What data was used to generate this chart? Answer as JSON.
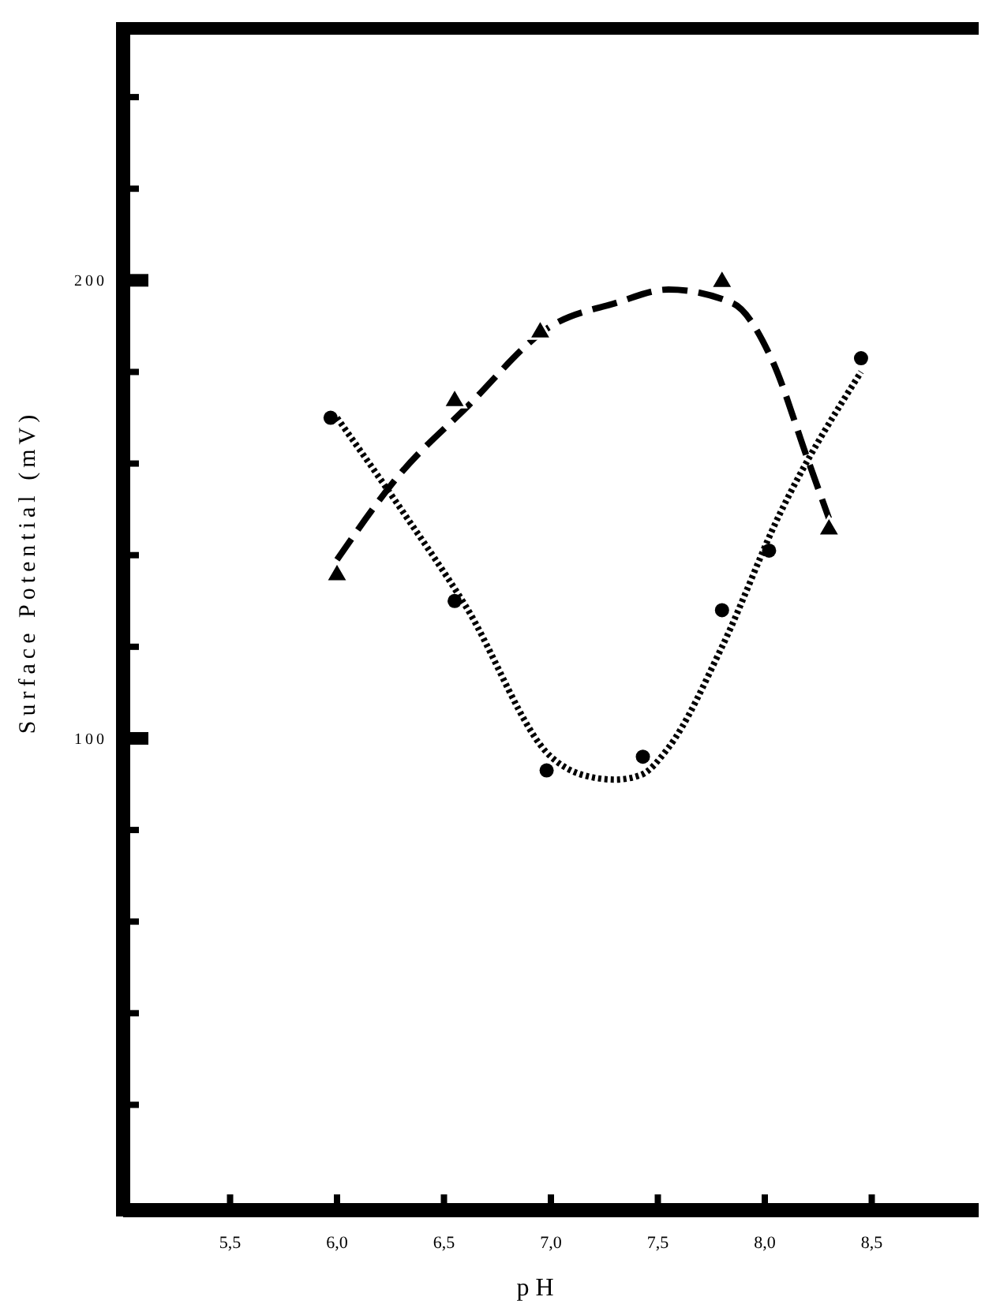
{
  "chart_data": {
    "type": "scatter",
    "xlabel": "p H",
    "ylabel": "Surface Potential (mV)",
    "xlim": [
      5.0,
      9.0
    ],
    "ylim": [
      -3,
      255
    ],
    "xticks": [
      {
        "value": 5.5,
        "label": "5,5"
      },
      {
        "value": 6.0,
        "label": "6,0"
      },
      {
        "value": 6.5,
        "label": "6,5"
      },
      {
        "value": 7.0,
        "label": "7,0"
      },
      {
        "value": 7.5,
        "label": "7,5"
      },
      {
        "value": 8.0,
        "label": "8,0"
      },
      {
        "value": 8.5,
        "label": "8,5"
      }
    ],
    "yticks": [
      {
        "value": 20,
        "label": null
      },
      {
        "value": 40,
        "label": null
      },
      {
        "value": 60,
        "label": null
      },
      {
        "value": 80,
        "label": null
      },
      100,
      {
        "value": 120,
        "label": null
      },
      {
        "value": 140,
        "label": null
      },
      {
        "value": 160,
        "label": null
      },
      {
        "value": 180,
        "label": null
      },
      200,
      {
        "value": 220,
        "label": null
      },
      {
        "value": 240,
        "label": null
      }
    ],
    "grid": false,
    "series": [
      {
        "marker": "triangle",
        "color": "#000000",
        "x": [
          6.0,
          6.55,
          6.95,
          7.8,
          8.3
        ],
        "values": [
          136,
          174,
          189,
          200,
          146
        ]
      },
      {
        "marker": "circle",
        "color": "#000000",
        "x": [
          5.97,
          6.55,
          6.98,
          7.43,
          7.8,
          8.02,
          8.45
        ],
        "values": [
          170,
          130,
          93,
          96,
          128,
          141,
          183
        ]
      },
      {
        "type": "line",
        "marker": "none",
        "line_style": "dashed",
        "color": "#000000",
        "x": [
          6.0,
          6.3,
          6.6,
          7.0,
          7.3,
          7.55,
          7.85,
          8.03,
          8.2,
          8.3
        ],
        "values": [
          139,
          158,
          172,
          190,
          195,
          198,
          195,
          183,
          161,
          148
        ]
      },
      {
        "type": "line",
        "marker": "none",
        "line_style": "dotted",
        "color": "#000000",
        "x": [
          6.0,
          6.3,
          6.6,
          7.0,
          7.15,
          7.3,
          7.42,
          7.55,
          7.8,
          8.07,
          8.45
        ],
        "values": [
          170,
          150,
          129,
          96,
          92,
          91,
          92,
          98,
          120,
          149,
          180
        ]
      }
    ]
  }
}
